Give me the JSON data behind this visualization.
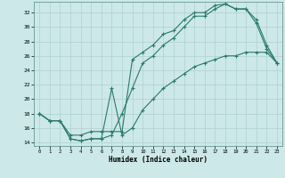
{
  "xlabel": "Humidex (Indice chaleur)",
  "bg_color": "#cce8e8",
  "line_color": "#2a7a6e",
  "grid_color": "#b0d0d0",
  "xlim": [
    -0.5,
    23.5
  ],
  "ylim": [
    13.5,
    33.5
  ],
  "yticks": [
    14,
    16,
    18,
    20,
    22,
    24,
    26,
    28,
    30,
    32
  ],
  "xticks": [
    0,
    1,
    2,
    3,
    4,
    5,
    6,
    7,
    8,
    9,
    10,
    11,
    12,
    13,
    14,
    15,
    16,
    17,
    18,
    19,
    20,
    21,
    22,
    23
  ],
  "line1_x": [
    0,
    1,
    2,
    3,
    4,
    5,
    6,
    7,
    8,
    9,
    10,
    11,
    12,
    13,
    14,
    15,
    16,
    17,
    18,
    19,
    20,
    21,
    22,
    23
  ],
  "line1_y": [
    18,
    17,
    17,
    14.5,
    14.2,
    14.5,
    14.5,
    15.0,
    18.0,
    21.5,
    25.0,
    26.0,
    27.5,
    28.5,
    30.0,
    31.5,
    31.5,
    32.5,
    33.2,
    32.5,
    32.5,
    30.5,
    27.0,
    25.0
  ],
  "line2_x": [
    0,
    1,
    2,
    3,
    4,
    5,
    6,
    7,
    8,
    9,
    10,
    11,
    12,
    13,
    14,
    15,
    16,
    17,
    18,
    19,
    20,
    21,
    22,
    23
  ],
  "line2_y": [
    18,
    17,
    17,
    14.5,
    14.2,
    14.5,
    14.5,
    21.5,
    15.0,
    16.0,
    18.5,
    20.0,
    21.5,
    22.5,
    23.5,
    24.5,
    25.0,
    25.5,
    26.0,
    26.0,
    26.5,
    26.5,
    26.5,
    25.0
  ],
  "line3_x": [
    0,
    1,
    2,
    3,
    4,
    5,
    6,
    7,
    8,
    9,
    10,
    11,
    12,
    13,
    14,
    15,
    16,
    17,
    18,
    19,
    20,
    21,
    22,
    23
  ],
  "line3_y": [
    18,
    17,
    17,
    15.0,
    15.0,
    15.5,
    15.5,
    15.5,
    15.5,
    25.5,
    26.5,
    27.5,
    29.0,
    29.5,
    31.0,
    32.0,
    32.0,
    33.0,
    33.2,
    32.5,
    32.5,
    31.0,
    27.5,
    25.0
  ]
}
